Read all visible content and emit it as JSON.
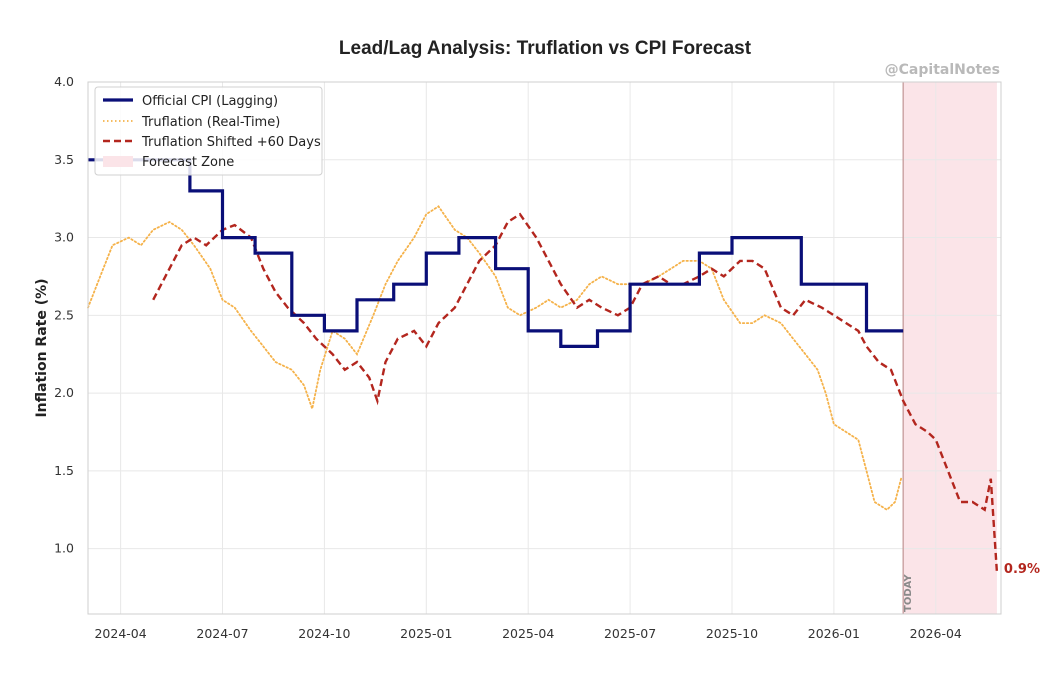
{
  "watermark": "@CapitalNotes",
  "today_label": "TODAY",
  "colors": {
    "cpi": "#0a0f78",
    "truflation": "#f5b24a",
    "shifted": "#b3261e",
    "forecast_fill": "#fbe4e8",
    "grid": "#e8e8e8",
    "today_line": "#c9a0a0"
  },
  "chart_data": {
    "type": "line",
    "title": "Lead/Lag Analysis: Truflation vs CPI Forecast",
    "xlabel": "",
    "ylabel": "Inflation Rate (%)",
    "x_unit": "decimal year",
    "xlim": [
      2024.17,
      2026.41
    ],
    "ylim": [
      0.58,
      4.0
    ],
    "yticks": [
      1.0,
      1.5,
      2.0,
      2.5,
      3.0,
      3.5,
      4.0
    ],
    "ytick_labels": [
      "1.0",
      "1.5",
      "2.0",
      "2.5",
      "3.0",
      "3.5",
      "4.0"
    ],
    "xticks": [
      2024.25,
      2024.5,
      2024.75,
      2025.0,
      2025.25,
      2025.5,
      2025.75,
      2026.0,
      2026.25
    ],
    "xtick_labels": [
      "2024-04",
      "2024-07",
      "2024-10",
      "2025-01",
      "2025-04",
      "2025-07",
      "2025-10",
      "2026-01",
      "2026-04"
    ],
    "grid": true,
    "legend_position": "top-left",
    "legend": [
      "Official CPI (Lagging)",
      "Truflation (Real-Time)",
      "Truflation Shifted +60 Days",
      "Forecast Zone"
    ],
    "today_x": 2026.17,
    "forecast_zone": [
      2026.17,
      2026.4
    ],
    "end_annotation": {
      "text": "0.9%",
      "x": 2026.4,
      "y": 0.85
    },
    "series": [
      {
        "name": "Official CPI (Lagging)",
        "style": "step-solid",
        "x": [
          2024.17,
          2024.42,
          2024.5,
          2024.58,
          2024.67,
          2024.75,
          2024.83,
          2024.92,
          2025.0,
          2025.08,
          2025.17,
          2025.25,
          2025.33,
          2025.42,
          2025.5,
          2025.58,
          2025.67,
          2025.75,
          2025.83,
          2025.92,
          2026.0,
          2026.08,
          2026.17
        ],
        "values": [
          3.5,
          3.3,
          3.0,
          2.9,
          2.5,
          2.4,
          2.6,
          2.7,
          2.9,
          3.0,
          2.8,
          2.4,
          2.3,
          2.4,
          2.7,
          2.7,
          2.9,
          3.0,
          3.0,
          2.7,
          2.7,
          2.4,
          2.4
        ]
      },
      {
        "name": "Truflation (Real-Time)",
        "style": "dotted",
        "x": [
          2024.17,
          2024.2,
          2024.23,
          2024.27,
          2024.3,
          2024.33,
          2024.37,
          2024.4,
          2024.43,
          2024.47,
          2024.5,
          2024.53,
          2024.57,
          2024.6,
          2024.63,
          2024.67,
          2024.7,
          2024.72,
          2024.74,
          2024.77,
          2024.8,
          2024.83,
          2024.87,
          2024.9,
          2024.93,
          2024.97,
          2025.0,
          2025.03,
          2025.07,
          2025.1,
          2025.13,
          2025.17,
          2025.2,
          2025.23,
          2025.27,
          2025.3,
          2025.33,
          2025.37,
          2025.4,
          2025.43,
          2025.47,
          2025.5,
          2025.53,
          2025.57,
          2025.6,
          2025.63,
          2025.67,
          2025.7,
          2025.73,
          2025.77,
          2025.8,
          2025.83,
          2025.87,
          2025.9,
          2025.93,
          2025.96,
          2025.98,
          2026.0,
          2026.03,
          2026.06,
          2026.08,
          2026.1,
          2026.13,
          2026.15,
          2026.165
        ],
        "values": [
          2.55,
          2.75,
          2.95,
          3.0,
          2.95,
          3.05,
          3.1,
          3.05,
          2.95,
          2.8,
          2.6,
          2.55,
          2.4,
          2.3,
          2.2,
          2.15,
          2.05,
          1.9,
          2.15,
          2.4,
          2.35,
          2.25,
          2.5,
          2.7,
          2.85,
          3.0,
          3.15,
          3.2,
          3.05,
          3.0,
          2.9,
          2.75,
          2.55,
          2.5,
          2.55,
          2.6,
          2.55,
          2.6,
          2.7,
          2.75,
          2.7,
          2.7,
          2.7,
          2.75,
          2.8,
          2.85,
          2.85,
          2.8,
          2.6,
          2.45,
          2.45,
          2.5,
          2.45,
          2.35,
          2.25,
          2.15,
          2.0,
          1.8,
          1.75,
          1.7,
          1.5,
          1.3,
          1.25,
          1.3,
          1.45
        ]
      },
      {
        "name": "Truflation Shifted +60 Days",
        "style": "dashed",
        "x": [
          2024.33,
          2024.36,
          2024.4,
          2024.43,
          2024.46,
          2024.5,
          2024.53,
          2024.57,
          2024.6,
          2024.63,
          2024.66,
          2024.7,
          2024.73,
          2024.77,
          2024.8,
          2024.83,
          2024.86,
          2024.88,
          2024.9,
          2024.93,
          2024.97,
          2025.0,
          2025.03,
          2025.07,
          2025.1,
          2025.13,
          2025.17,
          2025.2,
          2025.23,
          2025.27,
          2025.3,
          2025.33,
          2025.37,
          2025.4,
          2025.43,
          2025.47,
          2025.5,
          2025.53,
          2025.57,
          2025.6,
          2025.63,
          2025.67,
          2025.7,
          2025.73,
          2025.77,
          2025.8,
          2025.83,
          2025.87,
          2025.9,
          2025.93,
          2025.97,
          2026.0,
          2026.03,
          2026.06,
          2026.08,
          2026.11,
          2026.14,
          2026.17,
          2026.2,
          2026.23,
          2026.25,
          2026.28,
          2026.31,
          2026.34,
          2026.37,
          2026.385,
          2026.4
        ],
        "values": [
          2.6,
          2.75,
          2.95,
          3.0,
          2.95,
          3.05,
          3.08,
          3.0,
          2.8,
          2.65,
          2.55,
          2.45,
          2.35,
          2.25,
          2.15,
          2.2,
          2.1,
          1.95,
          2.2,
          2.35,
          2.4,
          2.3,
          2.45,
          2.55,
          2.7,
          2.85,
          2.95,
          3.1,
          3.15,
          3.0,
          2.85,
          2.7,
          2.55,
          2.6,
          2.55,
          2.5,
          2.55,
          2.7,
          2.75,
          2.7,
          2.7,
          2.75,
          2.8,
          2.75,
          2.85,
          2.85,
          2.8,
          2.55,
          2.5,
          2.6,
          2.55,
          2.5,
          2.45,
          2.4,
          2.3,
          2.2,
          2.15,
          1.95,
          1.8,
          1.75,
          1.7,
          1.5,
          1.3,
          1.3,
          1.25,
          1.45,
          0.85
        ]
      }
    ]
  }
}
